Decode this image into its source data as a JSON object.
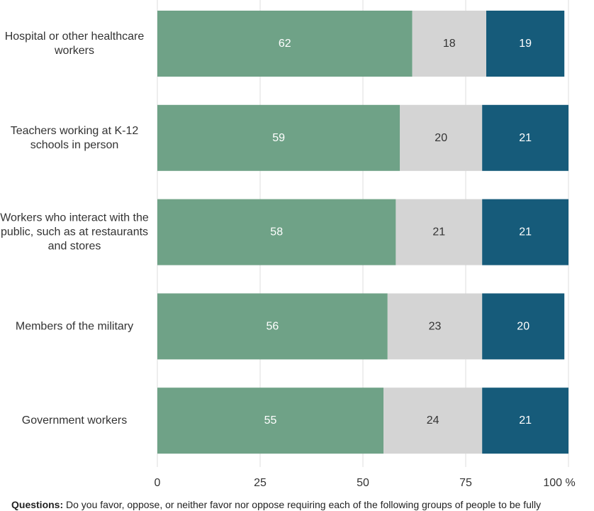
{
  "chart_data": {
    "type": "bar",
    "orientation": "horizontal",
    "stacked": true,
    "categories": [
      "Hospital or other healthcare workers",
      "Teachers working at K-12 schools in person",
      "Workers who interact with the public, such as at restaurants and stores",
      "Members of the military",
      "Government workers"
    ],
    "series": [
      {
        "values": [
          62,
          59,
          58,
          56,
          55
        ],
        "color": "#6fa287",
        "label_color": "#ffffff"
      },
      {
        "values": [
          18,
          20,
          21,
          23,
          24
        ],
        "color": "#d4d4d4",
        "label_color": "#333333"
      },
      {
        "values": [
          19,
          21,
          21,
          20,
          21
        ],
        "color": "#165b7a",
        "label_color": "#ffffff"
      }
    ],
    "x_ticks": [
      "0",
      "25",
      "50",
      "75",
      "100 %"
    ],
    "xlim": [
      0,
      100
    ],
    "grid": true
  },
  "footnote": {
    "label": "Questions:",
    "text": "Do you favor, oppose, or neither favor nor oppose requiring each of the following groups of people to be fully"
  }
}
